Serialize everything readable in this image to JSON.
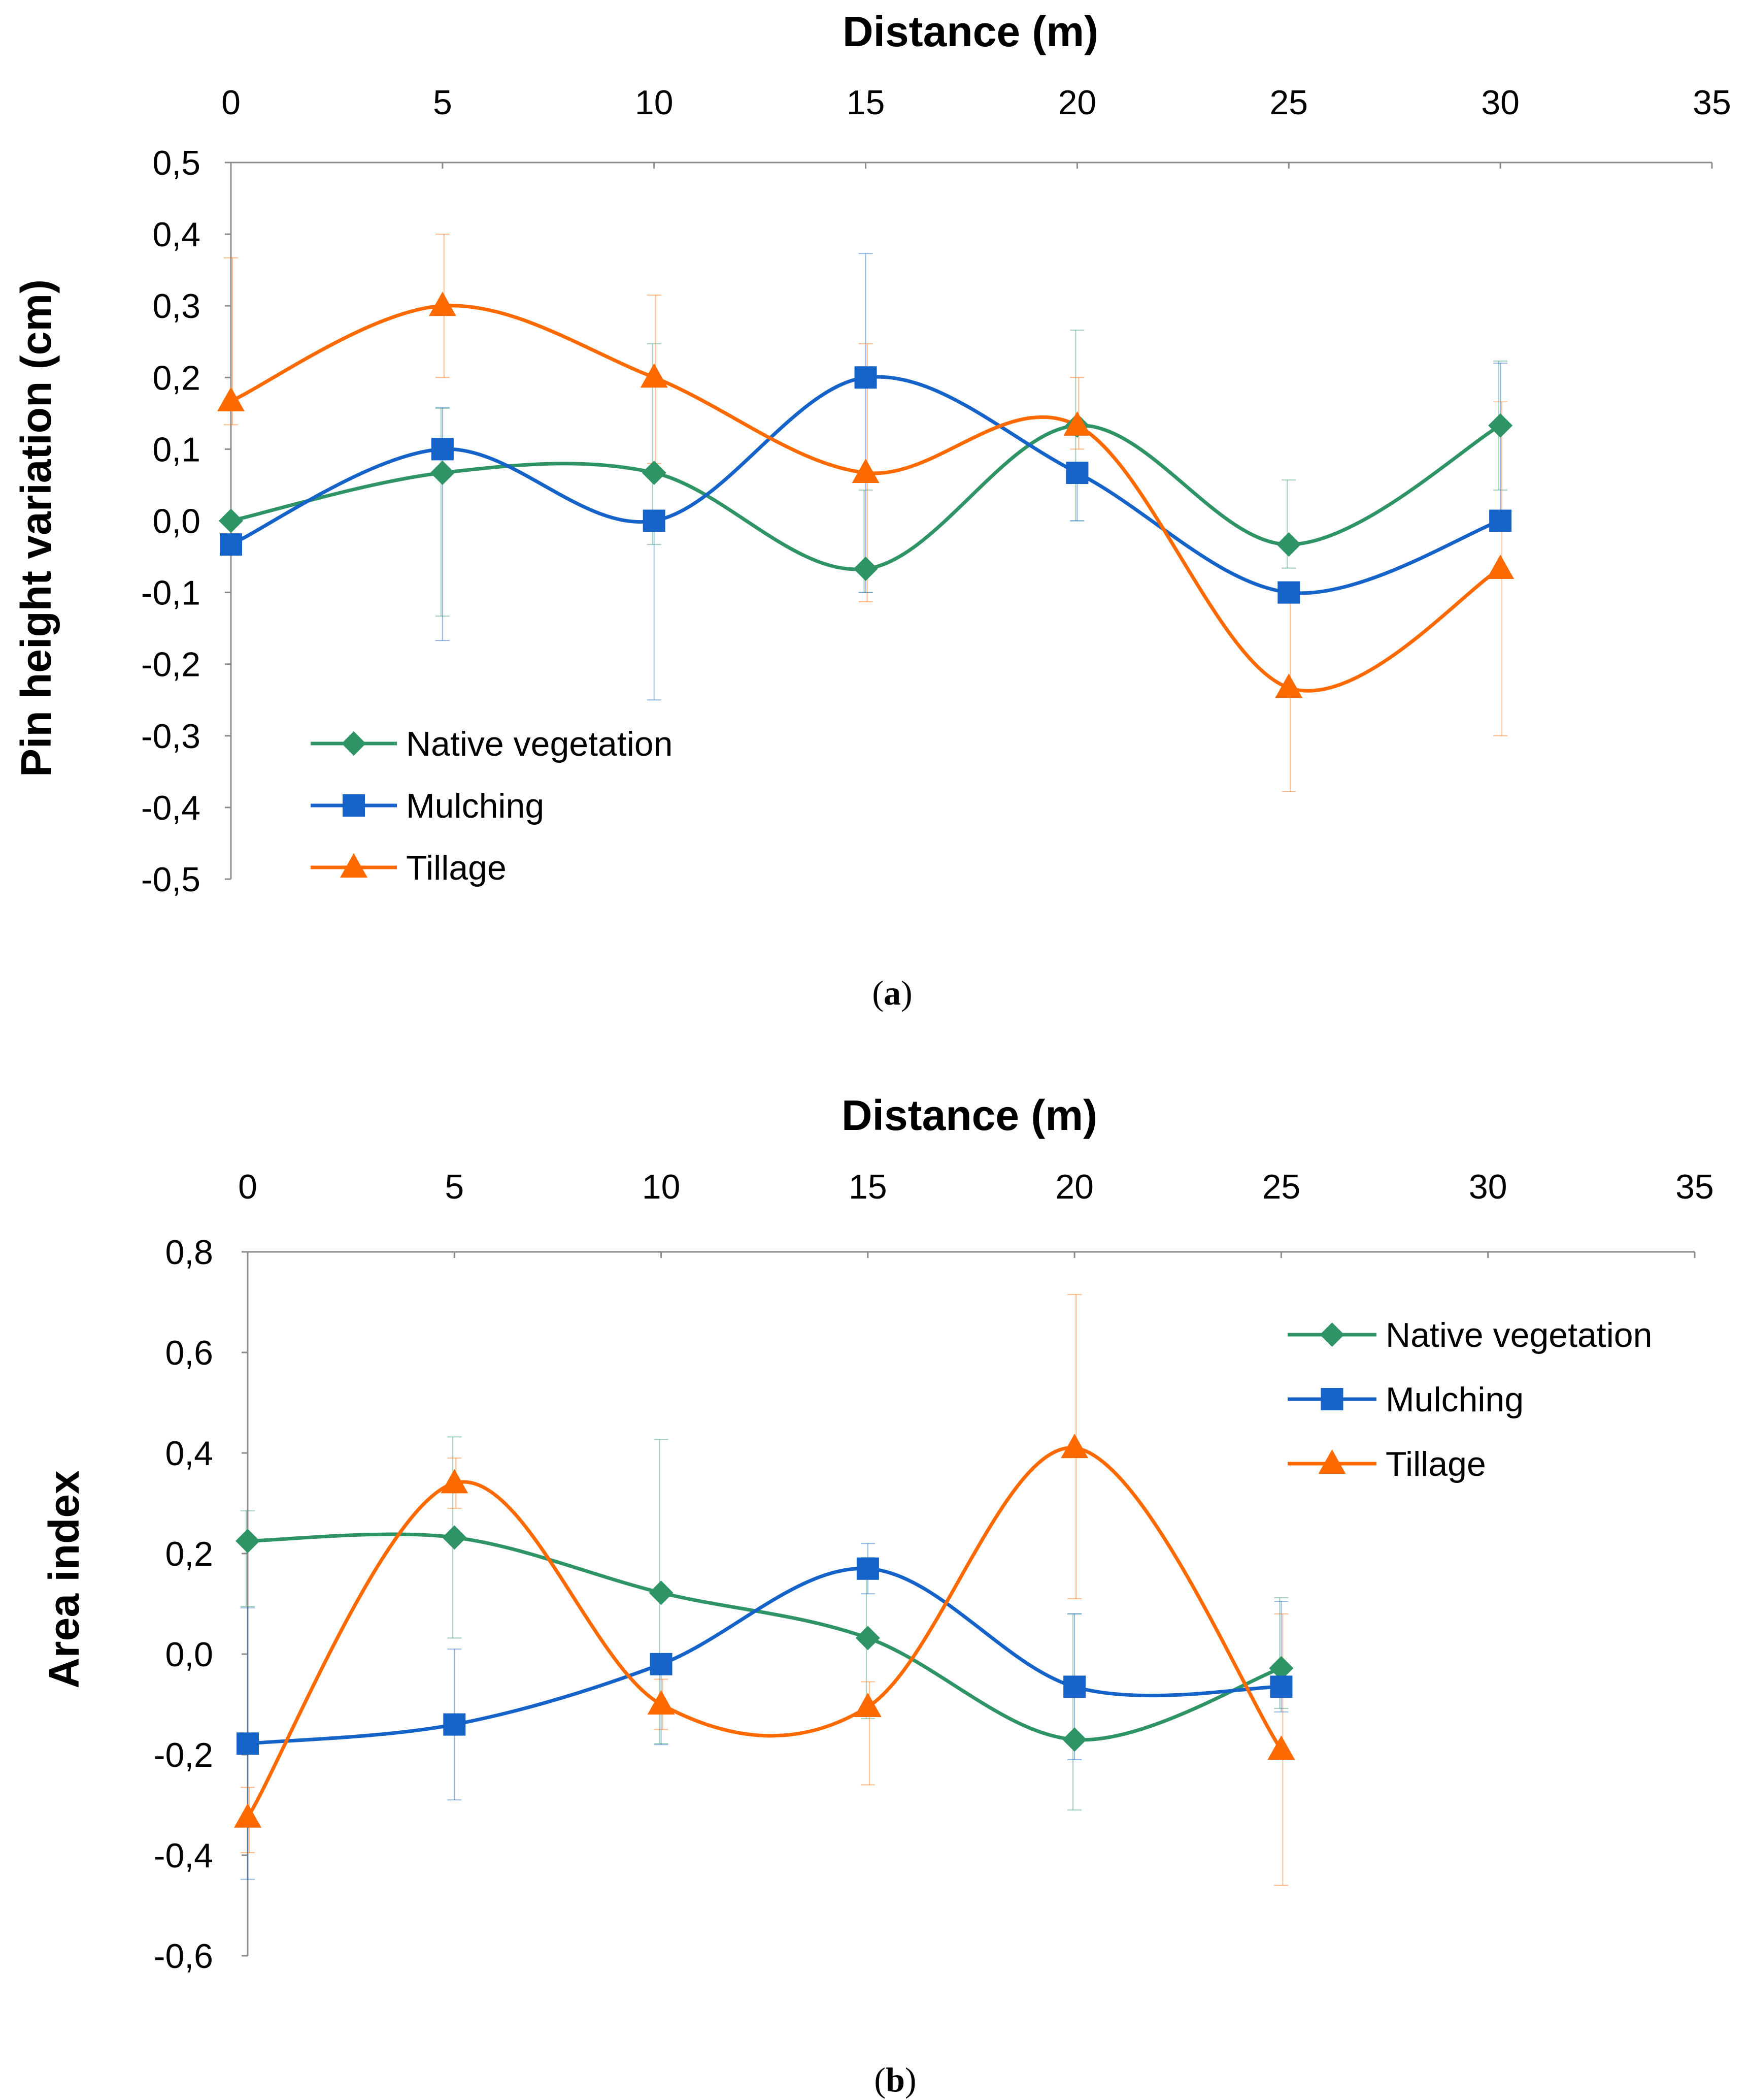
{
  "colors": {
    "native": "#2e9466",
    "mulching": "#1563c9",
    "tillage": "#ff6a00",
    "axis": "#8c8c8c"
  },
  "chart_data": [
    {
      "id": "a",
      "type": "line",
      "caption": "a",
      "title": "Distance (m)",
      "xlabel": "Distance (m)",
      "ylabel": "Pin height variation (cm)",
      "xlim": [
        0,
        35
      ],
      "ylim": [
        -0.5,
        0.5
      ],
      "x_ticks": [
        "0",
        "5",
        "10",
        "15",
        "20",
        "25",
        "30",
        "35"
      ],
      "y_ticks": [
        "0,5",
        "0,4",
        "0,3",
        "0,2",
        "0,1",
        "0,0",
        "-0,1",
        "-0,2",
        "-0,3",
        "-0,4",
        "-0,5"
      ],
      "legend_position": "bottom-left",
      "x": [
        0,
        5,
        10,
        15,
        20,
        25,
        30
      ],
      "series": [
        {
          "name": "Native vegetation",
          "color_key": "native",
          "marker": "diamond",
          "values": [
            0.0,
            0.067,
            0.067,
            -0.067,
            0.133,
            -0.033,
            0.133
          ],
          "err_low": [
            0.0,
            0.2,
            0.1,
            0.033,
            0.133,
            0.033,
            0.09
          ],
          "err_high": [
            0.0,
            0.09,
            0.18,
            0.11,
            0.133,
            0.09,
            0.09
          ]
        },
        {
          "name": "Mulching",
          "color_key": "mulching",
          "marker": "square",
          "values": [
            -0.033,
            0.1,
            0.0,
            0.2,
            0.067,
            -0.1,
            0.0
          ],
          "err_low": [
            0.0,
            0.267,
            0.25,
            0.3,
            0.067,
            0.0,
            0.0
          ],
          "err_high": [
            0.0,
            0.058,
            0.0,
            0.173,
            0.0,
            0.0,
            0.22
          ]
        },
        {
          "name": "Tillage",
          "color_key": "tillage",
          "marker": "triangle",
          "values": [
            0.167,
            0.3,
            0.2,
            0.067,
            0.133,
            -0.233,
            -0.067
          ],
          "err_low": [
            0.033,
            0.1,
            0.12,
            0.18,
            0.033,
            0.145,
            0.233
          ],
          "err_high": [
            0.2,
            0.1,
            0.115,
            0.18,
            0.067,
            0.145,
            0.233
          ]
        }
      ]
    },
    {
      "id": "b",
      "type": "line",
      "caption": "b",
      "title": "Distance (m)",
      "xlabel": "Distance (m)",
      "ylabel": "Area index",
      "xlim": [
        0,
        35
      ],
      "ylim": [
        -0.6,
        0.8
      ],
      "x_ticks": [
        "0",
        "5",
        "10",
        "15",
        "20",
        "25",
        "30",
        "35"
      ],
      "y_ticks": [
        "0,8",
        "0,6",
        "0,4",
        "0,2",
        "0,0",
        "-0,2",
        "-0,4",
        "-0,6"
      ],
      "legend_position": "top-right",
      "x": [
        0,
        5,
        10,
        15,
        20,
        25
      ],
      "series": [
        {
          "name": "Native vegetation",
          "color_key": "native",
          "marker": "diamond",
          "values": [
            0.225,
            0.232,
            0.122,
            0.032,
            -0.17,
            -0.028
          ],
          "err_low": [
            0.13,
            0.2,
            0.3,
            0.16,
            0.14,
            0.08
          ],
          "err_high": [
            0.06,
            0.2,
            0.305,
            0.16,
            0.25,
            0.14
          ]
        },
        {
          "name": "Mulching",
          "color_key": "mulching",
          "marker": "square",
          "values": [
            -0.178,
            -0.14,
            -0.02,
            0.17,
            -0.065,
            -0.065
          ],
          "err_low": [
            0.27,
            0.15,
            0.16,
            0.05,
            0.145,
            0.05
          ],
          "err_high": [
            0.27,
            0.15,
            0.02,
            0.05,
            0.145,
            0.17
          ]
        },
        {
          "name": "Tillage",
          "color_key": "tillage",
          "marker": "triangle",
          "values": [
            -0.325,
            0.34,
            -0.1,
            -0.105,
            0.41,
            -0.19
          ],
          "err_low": [
            0.07,
            0.05,
            0.05,
            0.155,
            0.3,
            0.27
          ],
          "err_high": [
            0.06,
            0.05,
            0.05,
            0.05,
            0.305,
            0.27
          ]
        }
      ]
    }
  ]
}
